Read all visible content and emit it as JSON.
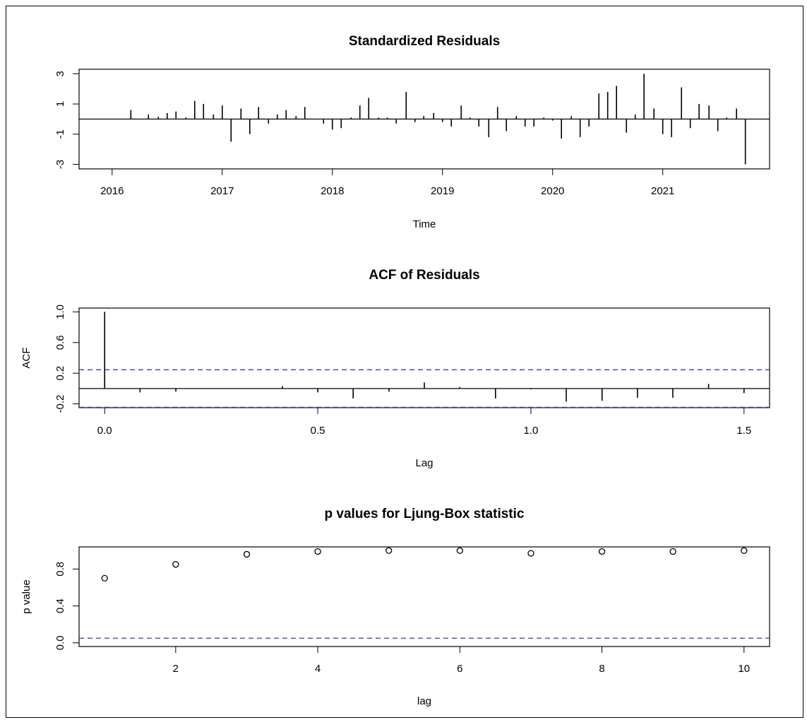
{
  "chart_data": [
    {
      "type": "bar",
      "title": "Standardized Residuals",
      "xlabel": "Time",
      "ylabel": "",
      "xlim": [
        2015.7,
        2021.97
      ],
      "ylim": [
        -3.3,
        3.3
      ],
      "xticks": [
        2016,
        2017,
        2018,
        2019,
        2020,
        2021
      ],
      "yticks": [
        -3,
        -1,
        1,
        3
      ],
      "reference_lines": [
        {
          "y": 0,
          "style": "solid",
          "color": "#000000"
        }
      ],
      "x": [
        2016.17,
        2016.33,
        2016.42,
        2016.5,
        2016.58,
        2016.67,
        2016.75,
        2016.83,
        2016.92,
        2017.0,
        2017.08,
        2017.17,
        2017.25,
        2017.33,
        2017.42,
        2017.5,
        2017.58,
        2017.67,
        2017.75,
        2017.83,
        2017.92,
        2018.0,
        2018.08,
        2018.17,
        2018.25,
        2018.33,
        2018.42,
        2018.5,
        2018.58,
        2018.67,
        2018.75,
        2018.83,
        2018.92,
        2019.0,
        2019.08,
        2019.17,
        2019.25,
        2019.33,
        2019.42,
        2019.5,
        2019.58,
        2019.67,
        2019.75,
        2019.83,
        2019.92,
        2020.0,
        2020.08,
        2020.17,
        2020.25,
        2020.33,
        2020.42,
        2020.5,
        2020.58,
        2020.67,
        2020.75,
        2020.83,
        2020.92,
        2021.0,
        2021.08,
        2021.17,
        2021.25,
        2021.33,
        2021.42,
        2021.5,
        2021.58,
        2021.67,
        2021.75
      ],
      "values": [
        0.6,
        0.3,
        0.15,
        0.4,
        0.5,
        0.1,
        1.2,
        1.0,
        0.3,
        0.9,
        -1.5,
        0.7,
        -1.0,
        0.8,
        -0.3,
        0.3,
        0.6,
        0.2,
        0.8,
        0.0,
        -0.3,
        -0.7,
        -0.6,
        0.1,
        0.9,
        1.4,
        0.1,
        0.1,
        -0.3,
        1.8,
        -0.2,
        0.2,
        0.4,
        -0.2,
        -0.5,
        0.9,
        0.1,
        -0.5,
        -1.2,
        0.8,
        -0.8,
        0.2,
        -0.5,
        -0.5,
        0.1,
        -0.1,
        -1.3,
        0.2,
        -1.2,
        -0.5,
        1.7,
        1.8,
        2.2,
        -0.9,
        0.3,
        3.0,
        0.7,
        -1.0,
        -1.2,
        2.1,
        -0.6,
        1.0,
        0.9,
        -0.8,
        0.1,
        0.7,
        -3.0
      ]
    },
    {
      "type": "bar",
      "title": "ACF of Residuals",
      "xlabel": "Lag",
      "ylabel": "ACF",
      "xlim": [
        -0.06,
        1.56
      ],
      "ylim": [
        -0.25,
        1.05
      ],
      "xticks": [
        0.0,
        0.5,
        1.0,
        1.5
      ],
      "xtick_labels": [
        "0.0",
        "0.5",
        "1.0",
        "1.5"
      ],
      "yticks": [
        -0.2,
        0.2,
        0.6,
        1.0
      ],
      "ytick_labels": [
        "-0.2",
        "0.2",
        "0.6",
        "1.0"
      ],
      "reference_lines": [
        {
          "y": 0,
          "style": "solid",
          "color": "#000000"
        },
        {
          "y": 0.245,
          "style": "dashed",
          "color": "#3a3ab0"
        },
        {
          "y": -0.245,
          "style": "dashed",
          "color": "#3a3ab0"
        }
      ],
      "x": [
        0.0,
        0.083,
        0.167,
        0.25,
        0.333,
        0.417,
        0.5,
        0.583,
        0.667,
        0.75,
        0.833,
        0.917,
        1.0,
        1.083,
        1.167,
        1.25,
        1.333,
        1.417,
        1.5
      ],
      "values": [
        1.0,
        -0.05,
        -0.04,
        0.0,
        0.0,
        0.03,
        -0.05,
        -0.13,
        -0.04,
        0.08,
        0.02,
        -0.13,
        -0.01,
        -0.17,
        -0.16,
        -0.12,
        -0.12,
        0.06,
        -0.06
      ]
    },
    {
      "type": "scatter",
      "title": "p values for Ljung-Box statistic",
      "xlabel": "lag",
      "ylabel": "p value",
      "xlim": [
        0.64,
        10.36
      ],
      "ylim": [
        -0.04,
        1.04
      ],
      "xticks": [
        2,
        4,
        6,
        8,
        10
      ],
      "yticks": [
        0.0,
        0.4,
        0.8
      ],
      "ytick_labels": [
        "0.0",
        "0.4",
        "0.8"
      ],
      "reference_lines": [
        {
          "y": 0.05,
          "style": "dashed",
          "color": "#3a3ab0"
        }
      ],
      "x": [
        1,
        2,
        3,
        4,
        5,
        6,
        7,
        8,
        9,
        10
      ],
      "values": [
        0.7,
        0.85,
        0.96,
        0.99,
        1.0,
        1.0,
        0.97,
        0.99,
        0.99,
        1.0
      ]
    }
  ]
}
